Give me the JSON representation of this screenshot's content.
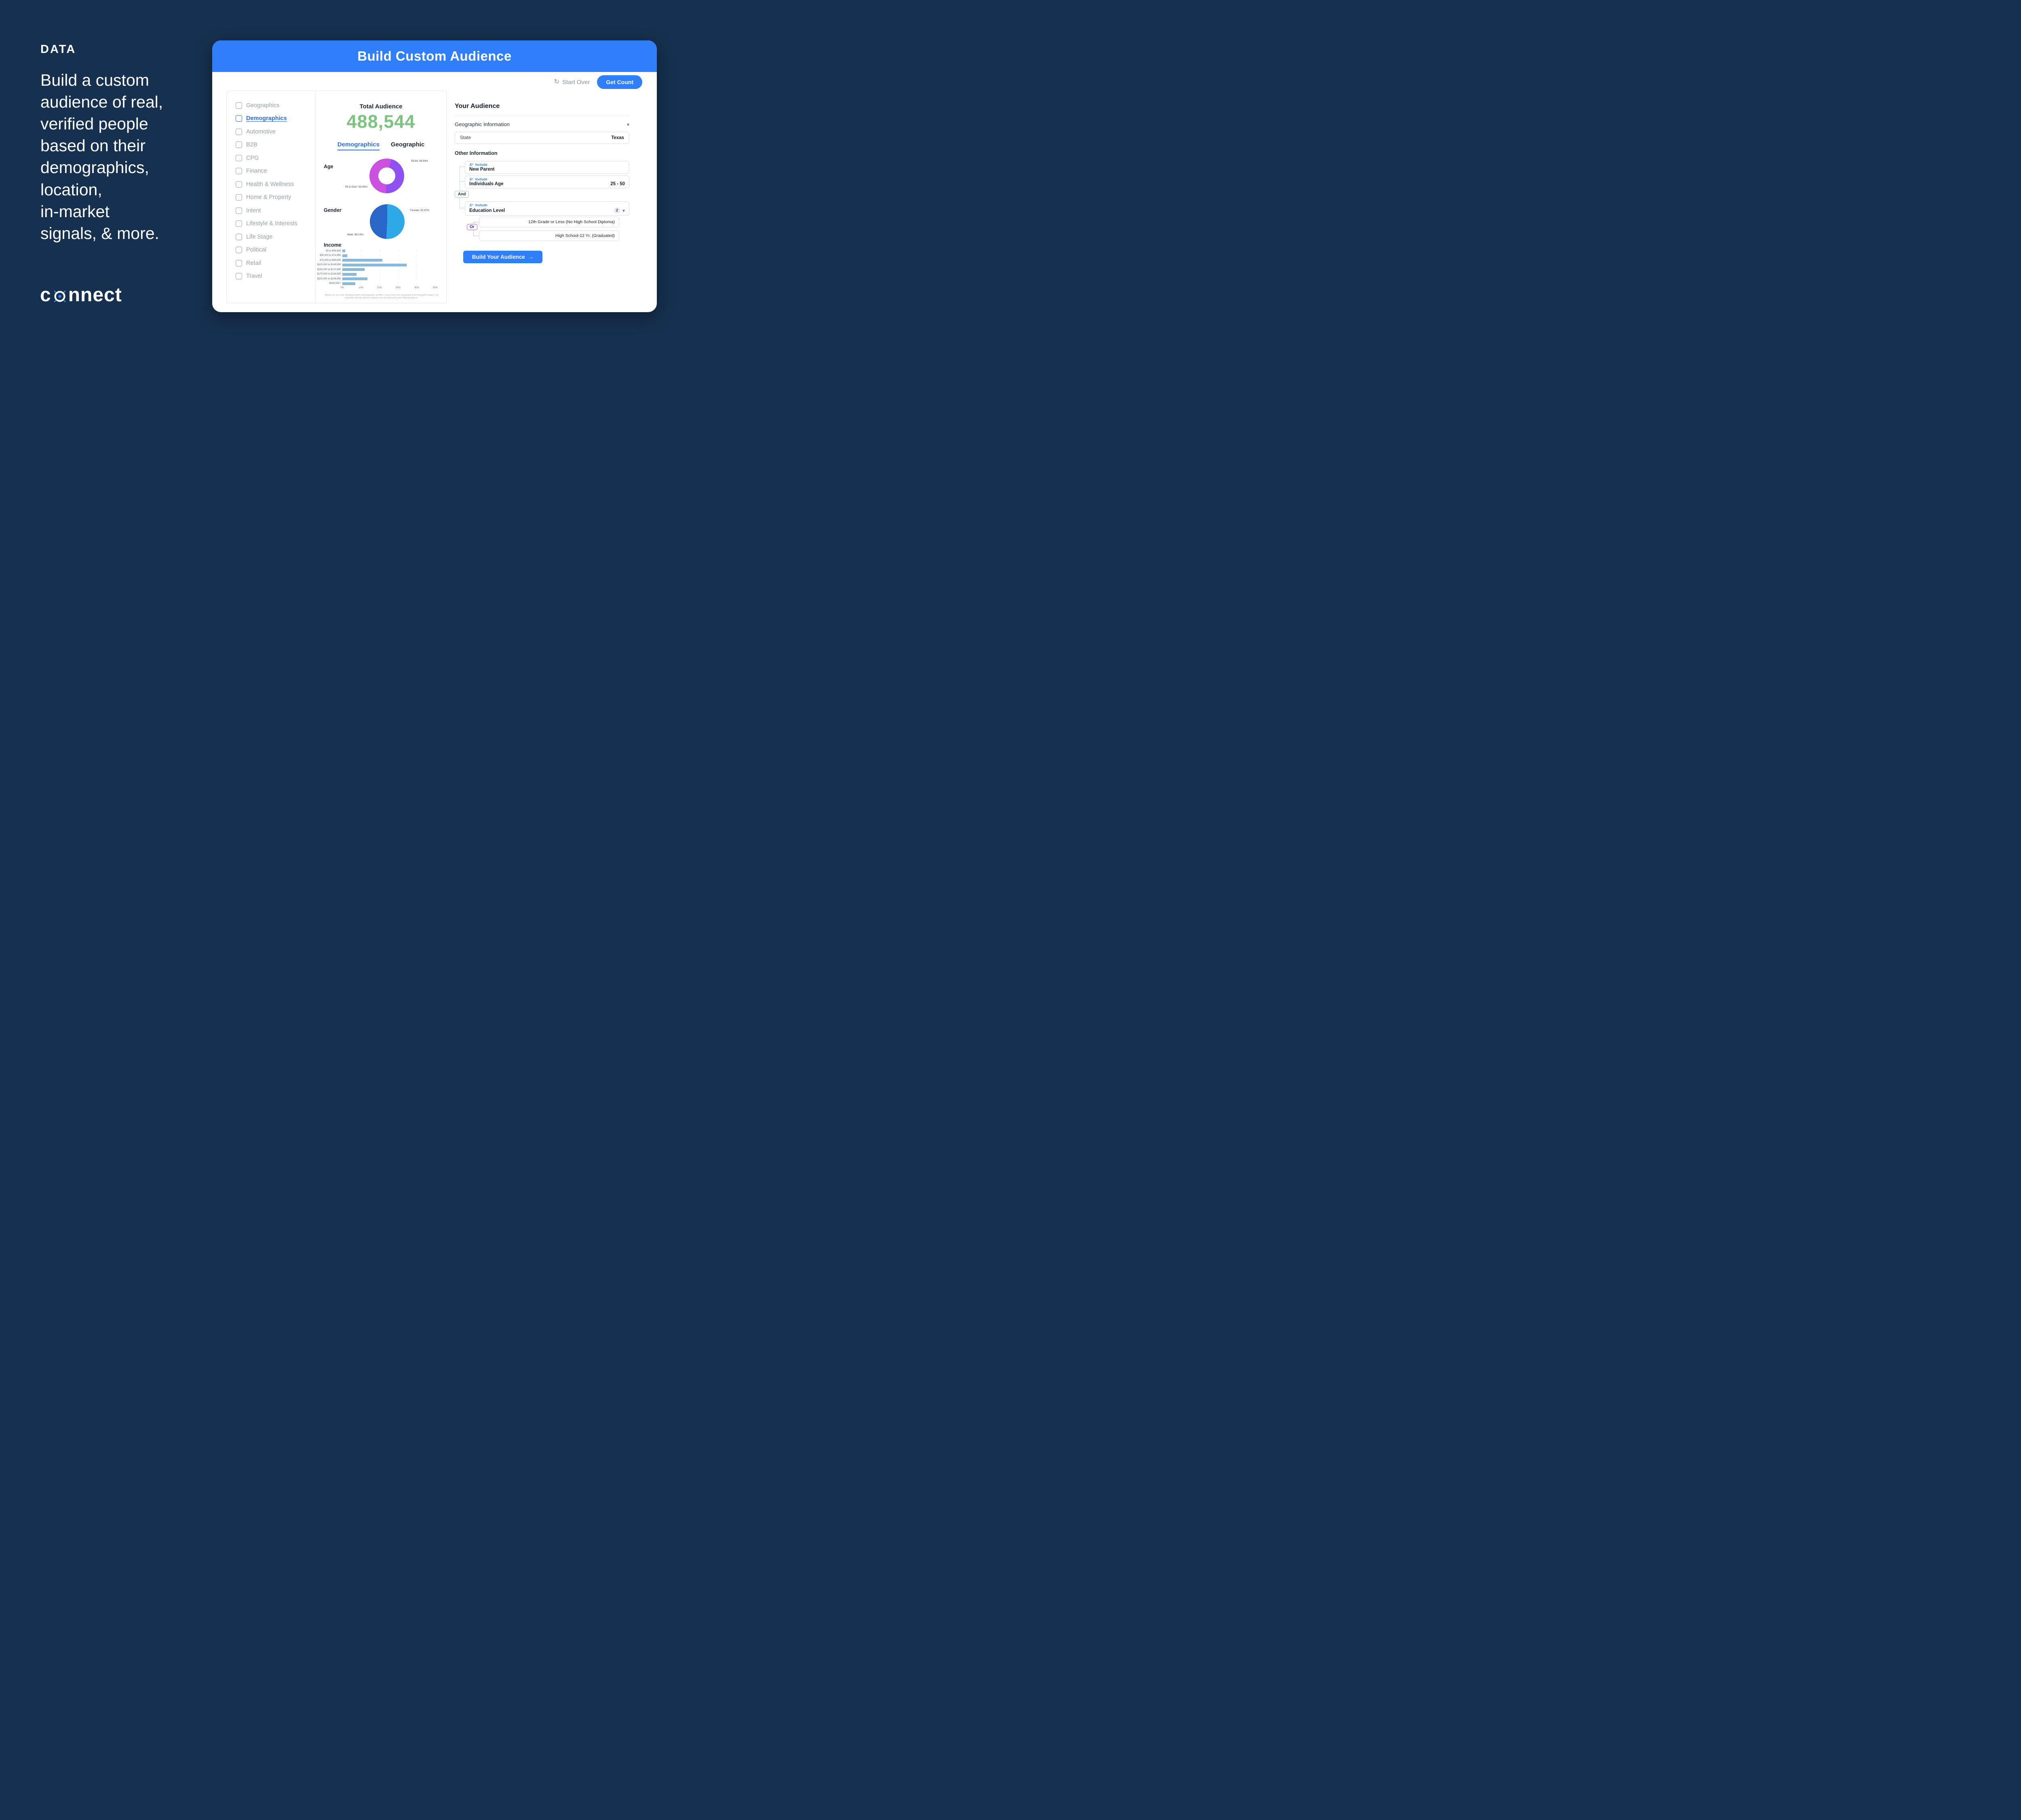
{
  "slide": {
    "eyebrow": "DATA",
    "headline": "Build a custom\naudience of real,\nverified people\nbased on their\ndemographics,\nlocation,\nin-market\nsignals, & more.",
    "logo_text_start": "c",
    "logo_text_end": "nnect"
  },
  "app": {
    "header_title": "Build Custom Audience",
    "toolbar": {
      "start_over_label": "Start Over",
      "get_count_label": "Get Count"
    },
    "sidebar_items": [
      {
        "label": "Geographics"
      },
      {
        "label": "Demographics",
        "active": true
      },
      {
        "label": "Automotive"
      },
      {
        "label": "B2B"
      },
      {
        "label": "CPG"
      },
      {
        "label": "Finance"
      },
      {
        "label": "Health & Wellness"
      },
      {
        "label": "Home & Property"
      },
      {
        "label": "Intent"
      },
      {
        "label": "Lifestyle & Interests"
      },
      {
        "label": "Life Stage"
      },
      {
        "label": "Political"
      },
      {
        "label": "Retail"
      },
      {
        "label": "Travel"
      }
    ],
    "summary": {
      "total_label": "Total Audience",
      "total_value": "488,544"
    },
    "tabs": [
      {
        "label": "Demographics",
        "active": true
      },
      {
        "label": "Geographic",
        "active": false
      }
    ],
    "charts": {
      "age": {
        "type": "pie",
        "donut": true,
        "title": "Age",
        "start_deg": 15,
        "slices": [
          {
            "label": "55-64",
            "value": 46.64,
            "color": "#8f51ef"
          },
          {
            "label": "65 & Over",
            "value": 53.36,
            "color": "#cb52e0"
          }
        ],
        "callouts": [
          "55-64: 46.64%",
          "65 & Over: 53.36%"
        ]
      },
      "gender": {
        "type": "pie",
        "donut": false,
        "title": "Gender",
        "start_deg": 0,
        "slices": [
          {
            "label": "Female",
            "value": 50.87,
            "color": "#2fa8e8"
          },
          {
            "label": "Male",
            "value": 49.13,
            "color": "#2a66c8"
          }
        ],
        "callouts": [
          "Female: 50.87%",
          "Male: 49.13%"
        ]
      },
      "income": {
        "type": "bar",
        "title": "Income",
        "categories": [
          "$0 to $49,999",
          "$50,000 to $74,999",
          "$75,000 to $99,999",
          "$100,000 to $149,999",
          "$150,000 to $174,999",
          "$175,000 to $199,999",
          "$200,000 to $249,999",
          "$250,000+"
        ],
        "values": [
          1.5,
          2.5,
          21.5,
          34.5,
          12,
          7.5,
          13.5,
          7
        ],
        "bar_color": "#8bb9d9",
        "xticks": [
          "0%",
          "10%",
          "20%",
          "30%",
          "40%",
          "50%"
        ],
        "xmax": 50
      }
    },
    "disclaimer": "Above we are only showing known demographic profiles. If you have not requested a demographic target, it is possible that the above numbers do not add up to your Total Audience.",
    "audience": {
      "title": "Your Audience",
      "geo_section_label": "Geographic Information",
      "state_label": "State",
      "state_value": "Texas",
      "other_section_label": "Other Information",
      "include_label": "Include",
      "and_label": "And",
      "or_label": "Or",
      "chips": [
        {
          "label": "New Parent"
        },
        {
          "label": "Individuals Age",
          "value": "25 - 50"
        },
        {
          "label": "Education Level",
          "count": "2"
        }
      ],
      "or_options": [
        "12th Grade or Less (No High School Diploma)",
        "High School-12 Yr. (Graduated)"
      ],
      "build_button_label": "Build Your Audience",
      "build_button_arrow": "→"
    },
    "colors": {
      "header_blue": "#2e7ff9",
      "total_green": "#7cc480",
      "background_navy": "#16304f"
    }
  }
}
